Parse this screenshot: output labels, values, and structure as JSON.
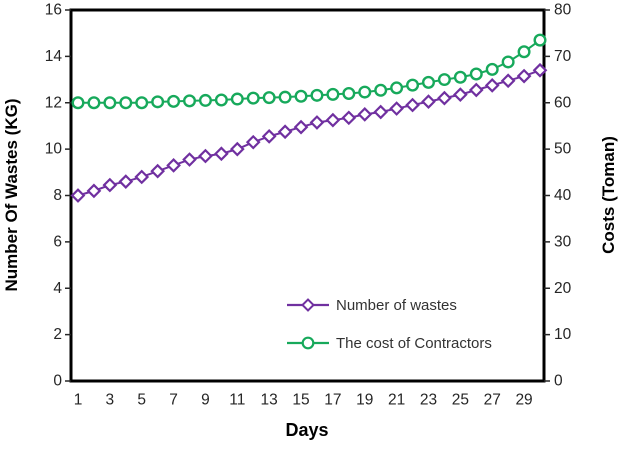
{
  "chart_data": {
    "type": "line",
    "title": "",
    "xlabel": "Days",
    "x": [
      1,
      2,
      3,
      4,
      5,
      6,
      7,
      8,
      9,
      10,
      11,
      12,
      13,
      14,
      15,
      16,
      17,
      18,
      19,
      20,
      21,
      22,
      23,
      24,
      25,
      26,
      27,
      28,
      29,
      30
    ],
    "x_tick_labels": [
      "1",
      "3",
      "5",
      "7",
      "9",
      "11",
      "13",
      "15",
      "17",
      "19",
      "21",
      "23",
      "25",
      "27",
      "29"
    ],
    "left_axis": {
      "label": "Number Of Wastes (KG)",
      "min": 0,
      "max": 16,
      "ticks": [
        "0",
        "2",
        "4",
        "6",
        "8",
        "10",
        "12",
        "14",
        "16"
      ]
    },
    "right_axis": {
      "label": "Costs (Toman)",
      "min": 0,
      "max": 80,
      "ticks": [
        "0",
        "10",
        "20",
        "30",
        "40",
        "50",
        "60",
        "70",
        "80"
      ]
    },
    "grid": false,
    "legend_position": "inside-bottom-right",
    "series": [
      {
        "name": "Number of wastes",
        "axis": "left",
        "marker": "diamond",
        "color": "#7030A0",
        "values": [
          8.0,
          8.2,
          8.45,
          8.6,
          8.8,
          9.05,
          9.3,
          9.55,
          9.7,
          9.8,
          10.0,
          10.3,
          10.55,
          10.75,
          10.95,
          11.15,
          11.25,
          11.35,
          11.5,
          11.6,
          11.75,
          11.9,
          12.05,
          12.2,
          12.35,
          12.55,
          12.75,
          12.95,
          13.15,
          13.4
        ]
      },
      {
        "name": "The cost of Contractors",
        "axis": "right",
        "marker": "circle",
        "color": "#17A95B",
        "values": [
          60,
          60,
          60,
          60,
          60,
          60.2,
          60.3,
          60.4,
          60.5,
          60.6,
          60.8,
          61,
          61.1,
          61.2,
          61.4,
          61.6,
          61.8,
          62,
          62.3,
          62.7,
          63.2,
          63.8,
          64.4,
          65,
          65.5,
          66.2,
          67.2,
          68.8,
          71,
          73.5
        ]
      }
    ],
    "frame_color": "#000000",
    "background_color": "#ffffff"
  }
}
